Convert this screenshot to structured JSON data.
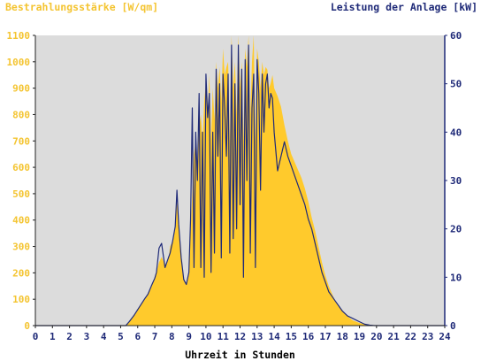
{
  "chart_data": {
    "type": "area",
    "title_left": "Bestrahlungsstärke [W/qm]",
    "title_right": "Leistung der Anlage [kW]",
    "xlabel": "Uhrzeit in Stunden",
    "xlim": [
      0,
      24
    ],
    "ylim_left": [
      0,
      1100
    ],
    "ylim_right": [
      0,
      60
    ],
    "xticks": [
      "0",
      "1",
      "2",
      "3",
      "4",
      "5",
      "6",
      "7",
      "8",
      "9",
      "10",
      "11",
      "12",
      "13",
      "14",
      "15",
      "16",
      "17",
      "18",
      "19",
      "20",
      "21",
      "22",
      "23",
      "24"
    ],
    "yticks_left": [
      "0",
      "100",
      "200",
      "300",
      "400",
      "500",
      "600",
      "700",
      "800",
      "900",
      "1000",
      "1100"
    ],
    "yticks_right": [
      "0",
      "10",
      "20",
      "30",
      "40",
      "50",
      "60"
    ],
    "grid": false,
    "colors": {
      "irradiance": "#ffca2c",
      "power": "#1f2a78",
      "plot_bg": "#dcdcdc",
      "left_axis": "#f4c430",
      "right_axis": "#1f2a78"
    },
    "series": [
      {
        "name": "Bestrahlungsstärke [W/qm]",
        "axis": "left",
        "x": [
          0,
          5.3,
          5.5,
          5.8,
          6,
          6.2,
          6.4,
          6.6,
          6.8,
          7,
          7.1,
          7.25,
          7.4,
          7.6,
          7.8,
          7.9,
          8.05,
          8.2,
          8.3,
          8.4,
          8.55,
          8.7,
          8.85,
          9,
          9.1,
          9.2,
          9.3,
          9.4,
          9.5,
          9.6,
          9.7,
          9.8,
          9.9,
          10,
          10.1,
          10.2,
          10.3,
          10.4,
          10.5,
          10.6,
          10.7,
          10.8,
          10.9,
          11,
          11.1,
          11.2,
          11.3,
          11.4,
          11.5,
          11.6,
          11.7,
          11.8,
          11.9,
          12,
          12.1,
          12.2,
          12.3,
          12.4,
          12.5,
          12.6,
          12.7,
          12.8,
          12.9,
          13,
          13.1,
          13.2,
          13.3,
          13.4,
          13.5,
          13.6,
          13.7,
          13.8,
          13.9,
          14,
          14.2,
          14.4,
          14.6,
          14.8,
          15,
          15.2,
          15.4,
          15.6,
          15.8,
          16,
          16.2,
          16.4,
          16.6,
          16.8,
          17,
          17.2,
          17.4,
          17.6,
          17.8,
          18,
          18.3,
          18.6,
          19,
          19.3,
          19.6,
          19.9,
          20.1,
          20.3,
          24
        ],
        "values": [
          0,
          0,
          15,
          40,
          60,
          80,
          100,
          120,
          150,
          180,
          200,
          240,
          260,
          230,
          250,
          300,
          320,
          380,
          470,
          380,
          250,
          180,
          160,
          200,
          350,
          500,
          650,
          700,
          600,
          750,
          800,
          700,
          850,
          920,
          800,
          950,
          700,
          900,
          780,
          1000,
          900,
          980,
          850,
          1050,
          950,
          980,
          1000,
          700,
          1100,
          900,
          1000,
          800,
          1100,
          900,
          1000,
          700,
          1050,
          980,
          1100,
          800,
          1000,
          1100,
          700,
          1050,
          1000,
          900,
          1000,
          950,
          980,
          970,
          900,
          920,
          950,
          900,
          870,
          830,
          760,
          700,
          650,
          620,
          590,
          560,
          520,
          470,
          410,
          360,
          300,
          240,
          190,
          150,
          120,
          90,
          70,
          55,
          35,
          20,
          10,
          5,
          2,
          1,
          0,
          0,
          0
        ]
      },
      {
        "name": "Leistung der Anlage [kW]",
        "axis": "right",
        "x": [
          0,
          5.3,
          5.5,
          5.8,
          6,
          6.2,
          6.4,
          6.6,
          6.8,
          7,
          7.1,
          7.25,
          7.4,
          7.6,
          7.8,
          7.9,
          8.05,
          8.2,
          8.3,
          8.4,
          8.55,
          8.7,
          8.85,
          9,
          9.1,
          9.2,
          9.3,
          9.4,
          9.5,
          9.6,
          9.7,
          9.8,
          9.9,
          10,
          10.1,
          10.2,
          10.3,
          10.4,
          10.5,
          10.6,
          10.7,
          10.8,
          10.9,
          11,
          11.1,
          11.2,
          11.3,
          11.4,
          11.5,
          11.6,
          11.7,
          11.8,
          11.9,
          12,
          12.1,
          12.2,
          12.3,
          12.4,
          12.5,
          12.6,
          12.7,
          12.8,
          12.9,
          13,
          13.1,
          13.2,
          13.3,
          13.4,
          13.5,
          13.6,
          13.7,
          13.8,
          13.9,
          14,
          14.2,
          14.4,
          14.6,
          14.8,
          15,
          15.2,
          15.4,
          15.6,
          15.8,
          16,
          16.2,
          16.4,
          16.6,
          16.8,
          17,
          17.2,
          17.4,
          17.6,
          17.8,
          18,
          18.3,
          18.6,
          19,
          19.3,
          19.6,
          19.9,
          20.1,
          20.3,
          24
        ],
        "values": [
          0,
          0,
          0.8,
          2.2,
          3.3,
          4.4,
          5.5,
          6.5,
          8.2,
          9.8,
          11,
          16,
          17,
          12,
          14,
          15,
          17.5,
          20.5,
          28,
          21,
          14,
          9.5,
          8.5,
          11,
          22,
          45,
          12,
          40,
          30,
          48,
          12,
          40,
          10,
          52,
          43,
          48,
          11,
          40,
          15,
          53,
          35,
          50,
          14,
          52,
          45,
          35,
          52,
          15,
          58,
          18,
          50,
          20,
          58,
          25,
          53,
          10,
          55,
          30,
          58,
          15,
          45,
          52,
          12,
          55,
          48,
          28,
          52,
          40,
          50,
          52,
          45,
          48,
          47,
          40,
          32,
          35,
          38,
          35,
          33,
          31,
          29,
          27,
          25,
          22,
          20,
          17,
          14,
          11,
          9,
          7,
          6,
          5,
          4,
          3,
          2,
          1.5,
          0.8,
          0.3,
          0.1,
          0,
          0,
          0,
          0
        ]
      }
    ]
  }
}
